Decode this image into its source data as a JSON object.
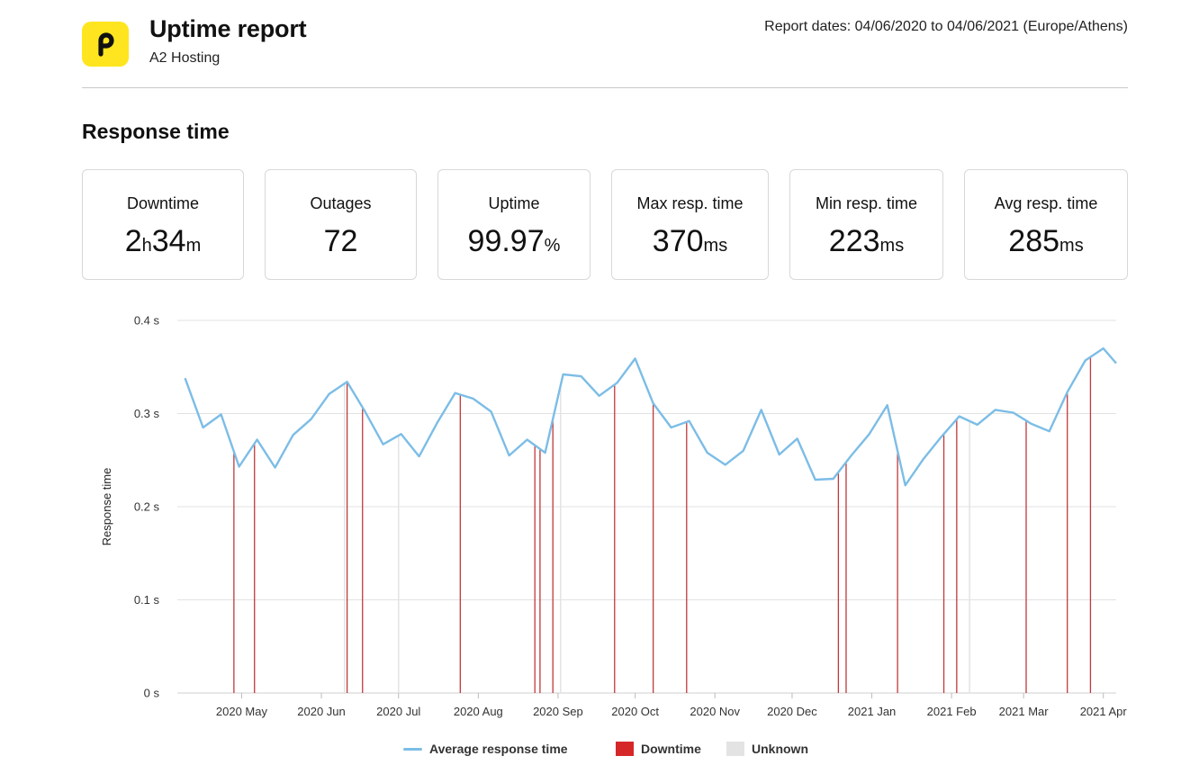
{
  "header": {
    "title": "Uptime report",
    "subtitle": "A2 Hosting",
    "report_dates": "Report dates: 04/06/2020 to 04/06/2021 (Europe/Athens)",
    "logo_icon": "p-logo-icon",
    "logo_color": "#ffe51f"
  },
  "section_title": "Response time",
  "stats": [
    {
      "label": "Downtime",
      "parts": [
        "2",
        "h",
        "34",
        "m"
      ]
    },
    {
      "label": "Outages",
      "parts": [
        "72"
      ]
    },
    {
      "label": "Uptime",
      "parts": [
        "99.97",
        "%"
      ]
    },
    {
      "label": "Max resp. time",
      "parts": [
        "370",
        "ms"
      ]
    },
    {
      "label": "Min resp. time",
      "parts": [
        "223",
        "ms"
      ]
    },
    {
      "label": "Avg resp. time",
      "parts": [
        "285",
        "ms"
      ]
    }
  ],
  "chart_data": {
    "type": "line",
    "ylabel": "Response time",
    "yticks": [
      "0 s",
      "0.1 s",
      "0.2 s",
      "0.3 s",
      "0.4 s"
    ],
    "ylim": [
      0,
      0.4
    ],
    "xticks": [
      {
        "label": "2020 May",
        "date": "2020-05-01"
      },
      {
        "label": "2020 Jun",
        "date": "2020-06-01"
      },
      {
        "label": "2020 Jul",
        "date": "2020-07-01"
      },
      {
        "label": "2020 Aug",
        "date": "2020-08-01"
      },
      {
        "label": "2020 Sep",
        "date": "2020-09-01"
      },
      {
        "label": "2020 Oct",
        "date": "2020-10-01"
      },
      {
        "label": "2020 Nov",
        "date": "2020-11-01"
      },
      {
        "label": "2020 Dec",
        "date": "2020-12-01"
      },
      {
        "label": "2021 Jan",
        "date": "2021-01-01"
      },
      {
        "label": "2021 Feb",
        "date": "2021-02-01"
      },
      {
        "label": "2021 Mar",
        "date": "2021-03-01"
      },
      {
        "label": "2021 Apr",
        "date": "2021-04-01"
      }
    ],
    "xlim": [
      "2020-04-06",
      "2021-04-06"
    ],
    "grid": true,
    "legend_position": "bottom",
    "series": [
      {
        "name": "Average response time",
        "color": "#7cbde6",
        "points": [
          [
            "2020-04-09",
            0.338
          ],
          [
            "2020-04-16",
            0.285
          ],
          [
            "2020-04-23",
            0.299
          ],
          [
            "2020-04-30",
            0.243
          ],
          [
            "2020-05-07",
            0.272
          ],
          [
            "2020-05-14",
            0.242
          ],
          [
            "2020-05-21",
            0.277
          ],
          [
            "2020-05-28",
            0.294
          ],
          [
            "2020-06-04",
            0.321
          ],
          [
            "2020-06-11",
            0.334
          ],
          [
            "2020-06-18",
            0.302
          ],
          [
            "2020-06-25",
            0.267
          ],
          [
            "2020-07-02",
            0.278
          ],
          [
            "2020-07-09",
            0.254
          ],
          [
            "2020-07-16",
            0.29
          ],
          [
            "2020-07-23",
            0.322
          ],
          [
            "2020-07-30",
            0.316
          ],
          [
            "2020-08-06",
            0.302
          ],
          [
            "2020-08-13",
            0.255
          ],
          [
            "2020-08-20",
            0.272
          ],
          [
            "2020-08-27",
            0.258
          ],
          [
            "2020-09-03",
            0.342
          ],
          [
            "2020-09-10",
            0.34
          ],
          [
            "2020-09-17",
            0.319
          ],
          [
            "2020-09-24",
            0.333
          ],
          [
            "2020-10-01",
            0.359
          ],
          [
            "2020-10-08",
            0.311
          ],
          [
            "2020-10-15",
            0.285
          ],
          [
            "2020-10-22",
            0.292
          ],
          [
            "2020-10-29",
            0.258
          ],
          [
            "2020-11-05",
            0.245
          ],
          [
            "2020-11-12",
            0.26
          ],
          [
            "2020-11-19",
            0.304
          ],
          [
            "2020-11-26",
            0.256
          ],
          [
            "2020-12-03",
            0.273
          ],
          [
            "2020-12-10",
            0.229
          ],
          [
            "2020-12-17",
            0.23
          ],
          [
            "2020-12-24",
            0.255
          ],
          [
            "2020-12-31",
            0.278
          ],
          [
            "2021-01-07",
            0.309
          ],
          [
            "2021-01-14",
            0.223
          ],
          [
            "2021-01-21",
            0.251
          ],
          [
            "2021-01-28",
            0.275
          ],
          [
            "2021-02-04",
            0.297
          ],
          [
            "2021-02-11",
            0.288
          ],
          [
            "2021-02-18",
            0.304
          ],
          [
            "2021-02-25",
            0.301
          ],
          [
            "2021-03-04",
            0.289
          ],
          [
            "2021-03-11",
            0.281
          ],
          [
            "2021-03-18",
            0.323
          ],
          [
            "2021-03-25",
            0.357
          ],
          [
            "2021-04-01",
            0.37
          ],
          [
            "2021-04-06",
            0.354
          ]
        ]
      }
    ],
    "downtime": {
      "name": "Downtime",
      "color": "#d62728",
      "dates": [
        "2020-04-28",
        "2020-05-06",
        "2020-06-11",
        "2020-06-17",
        "2020-07-25",
        "2020-08-23",
        "2020-08-25",
        "2020-08-30",
        "2020-09-23",
        "2020-10-08",
        "2020-10-21",
        "2020-12-19",
        "2020-12-22",
        "2021-01-11",
        "2021-01-29",
        "2021-02-03",
        "2021-03-02",
        "2021-03-18",
        "2021-03-27"
      ]
    },
    "unknown": {
      "name": "Unknown",
      "color": "#e3e3e3",
      "dates": [
        "2020-06-10",
        "2020-07-01",
        "2020-09-02",
        "2021-02-08"
      ]
    }
  }
}
